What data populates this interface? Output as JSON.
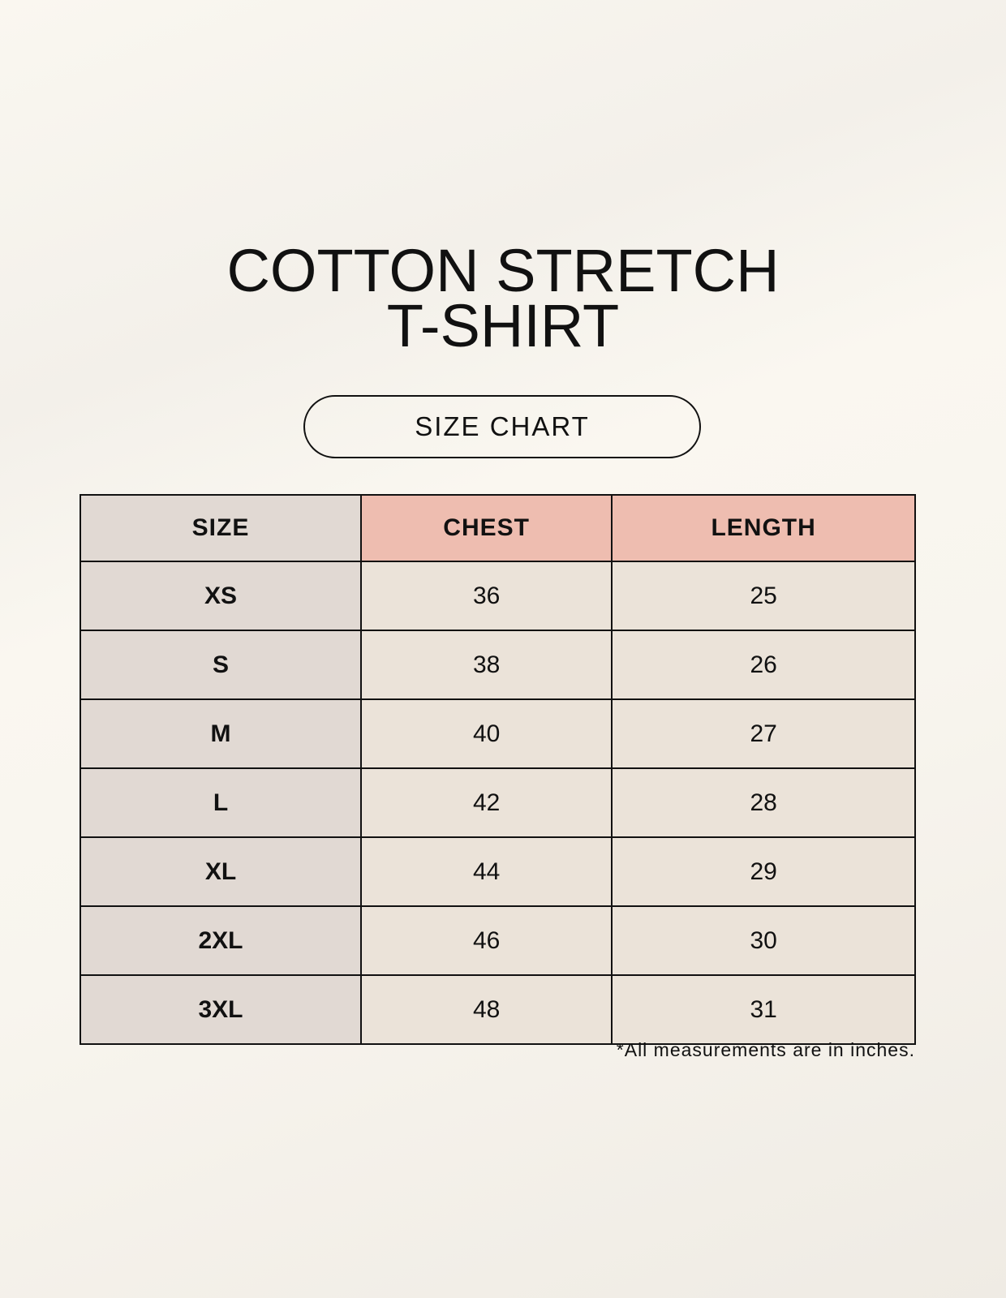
{
  "title": {
    "line1": "COTTON STRETCH",
    "line2": "T-SHIRT"
  },
  "badge": "SIZE CHART",
  "table": {
    "headers": [
      "SIZE",
      "CHEST",
      "LENGTH"
    ],
    "rows": [
      [
        "XS",
        "36",
        "25"
      ],
      [
        "S",
        "38",
        "26"
      ],
      [
        "M",
        "40",
        "27"
      ],
      [
        "L",
        "42",
        "28"
      ],
      [
        "XL",
        "44",
        "29"
      ],
      [
        "2XL",
        "46",
        "30"
      ],
      [
        "3XL",
        "48",
        "31"
      ]
    ]
  },
  "note": "*All measurements are in inches.",
  "colors": {
    "size_column": "#e1d9d3",
    "header_accent": "#eebdb0",
    "cell": "#ebe3d9"
  }
}
